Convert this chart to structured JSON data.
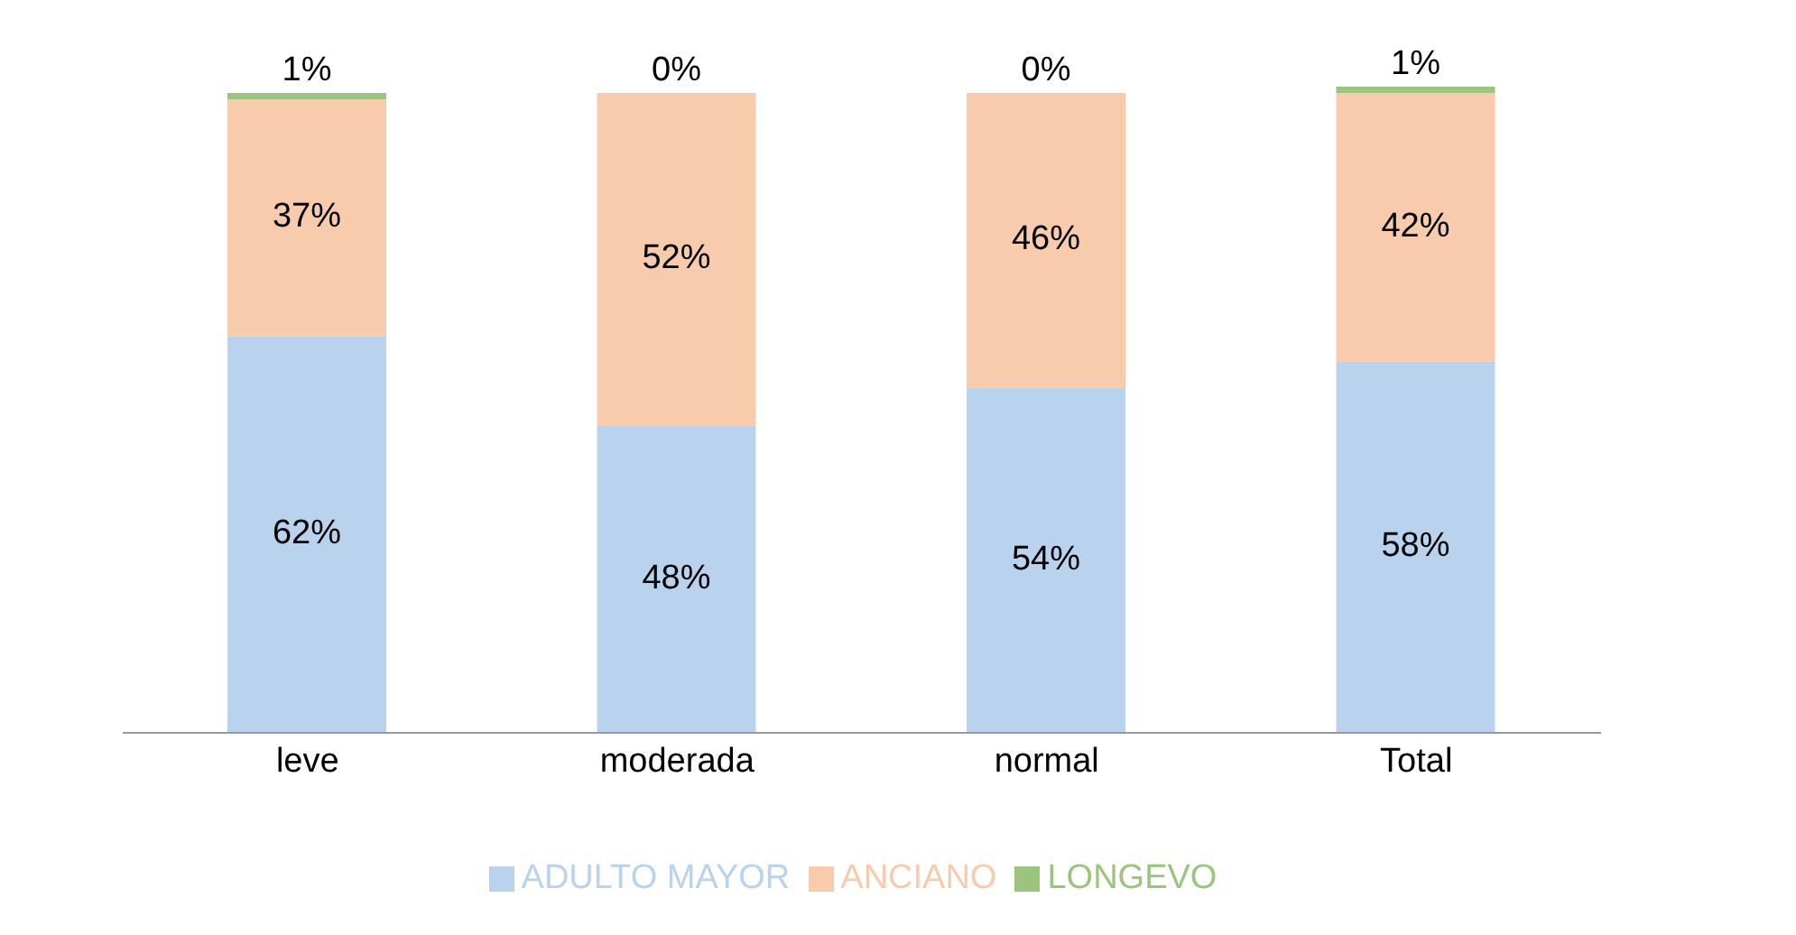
{
  "chart_data": {
    "type": "bar",
    "stacked": true,
    "categories": [
      "leve",
      "moderada",
      "normal",
      "Total"
    ],
    "series": [
      {
        "name": "ADULTO MAYOR",
        "color": "#b9d3ee",
        "values": [
          62,
          48,
          54,
          58
        ],
        "value_labels": [
          "62%",
          "48%",
          "54%",
          "58%"
        ]
      },
      {
        "name": "ANCIANO",
        "color": "#f8cbad",
        "values": [
          37,
          52,
          46,
          42
        ],
        "value_labels": [
          "37%",
          "52%",
          "46%",
          "42%"
        ]
      },
      {
        "name": "LONGEVO",
        "color": "#9bc47f",
        "values": [
          1,
          0,
          0,
          1
        ],
        "value_labels": [
          "1%",
          "0%",
          "0%",
          "1%"
        ]
      }
    ],
    "grid": false,
    "legend": "bottom"
  }
}
